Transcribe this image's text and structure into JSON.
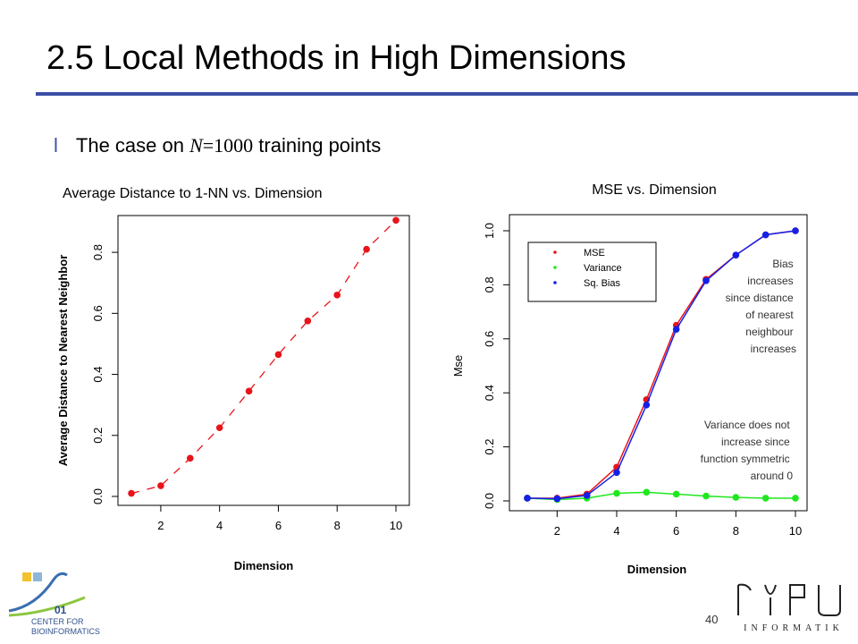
{
  "slide": {
    "title": "2.5 Local Methods in High Dimensions",
    "bullet_marker": "l",
    "bullet_pre": "The case on ",
    "bullet_math_var": "N",
    "bullet_math_eq": "=1000",
    "bullet_post": " training points",
    "page_number": "40",
    "logo_left_line1": "CENTER FOR",
    "logo_left_line2": "BIOINFORMATICS",
    "logo_right_text": "INFORMATIK",
    "accent_color": "#3b4ea6"
  },
  "chart_data": [
    {
      "type": "scatter",
      "title": "Average Distance to 1-NN vs. Dimension",
      "xlabel": "Dimension",
      "ylabel": "Average Distance to Nearest Neighbor",
      "xlim": [
        1,
        10
      ],
      "ylim": [
        0,
        0.9
      ],
      "xticks": [
        "2",
        "4",
        "6",
        "8",
        "10"
      ],
      "yticks": [
        "0.0",
        "0.2",
        "0.4",
        "0.6",
        "0.8"
      ],
      "x": [
        1,
        2,
        3,
        4,
        5,
        6,
        7,
        8,
        9,
        10
      ],
      "series": [
        {
          "values": [
            0.01,
            0.035,
            0.125,
            0.225,
            0.345,
            0.465,
            0.575,
            0.66,
            0.81,
            0.905
          ],
          "color": "#e8141a"
        }
      ],
      "line_style": "dashed"
    },
    {
      "type": "line",
      "title": "MSE vs. Dimension",
      "xlabel": "Dimension",
      "ylabel": "Mse",
      "xlim": [
        1,
        10
      ],
      "ylim": [
        0,
        1.0
      ],
      "xticks": [
        "2",
        "4",
        "6",
        "8",
        "10"
      ],
      "yticks": [
        "0.0",
        "0.2",
        "0.4",
        "0.6",
        "0.8",
        "1.0"
      ],
      "x": [
        1,
        2,
        3,
        4,
        5,
        6,
        7,
        8,
        9,
        10
      ],
      "series": [
        {
          "name": "MSE",
          "color": "#e8141a",
          "values": [
            0.01,
            0.01,
            0.025,
            0.125,
            0.375,
            0.65,
            0.82,
            0.91,
            0.985,
            1.0
          ]
        },
        {
          "name": "Variance",
          "color": "#1ee81e",
          "values": [
            0.01,
            0.005,
            0.01,
            0.028,
            0.032,
            0.025,
            0.018,
            0.013,
            0.01,
            0.01
          ]
        },
        {
          "name": "Sq. Bias",
          "color": "#1420e8",
          "values": [
            0.01,
            0.008,
            0.02,
            0.105,
            0.355,
            0.635,
            0.815,
            0.91,
            0.985,
            1.0
          ]
        }
      ],
      "annotations": [
        "Bias increases since distance of nearest neighbour increases",
        "Variance does not increase since function symmetric around 0"
      ]
    }
  ]
}
